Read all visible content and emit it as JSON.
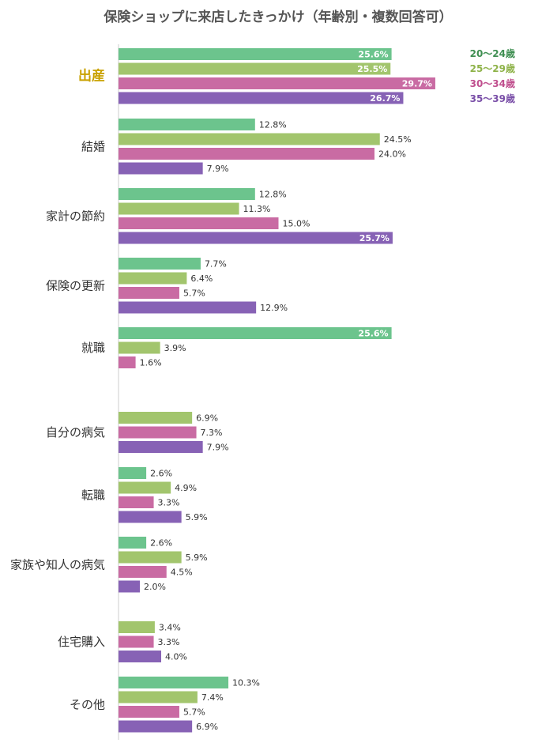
{
  "chart_data": {
    "type": "bar",
    "orientation": "horizontal",
    "title": "保険ショップに来店したきっかけ（年齢別・複数回答可）",
    "xlim": [
      0,
      30
    ],
    "grid": false,
    "legend_position": "top-right",
    "highlight_category": "出産",
    "categories": [
      "出産",
      "結婚",
      "家計の節約",
      "保険の更新",
      "就職",
      "自分の病気",
      "転職",
      "家族や知人の病気",
      "住宅購入",
      "その他"
    ],
    "series": [
      {
        "name": "20〜24歳",
        "color": "#6cc48d",
        "values": [
          25.6,
          12.8,
          12.8,
          7.7,
          25.6,
          null,
          2.6,
          2.6,
          null,
          10.3
        ]
      },
      {
        "name": "25〜29歳",
        "color": "#a2c56d",
        "values": [
          25.5,
          24.5,
          11.3,
          6.4,
          3.9,
          6.9,
          4.9,
          5.9,
          3.4,
          7.4
        ]
      },
      {
        "name": "30〜34歳",
        "color": "#c96ba3",
        "values": [
          29.7,
          24.0,
          15.0,
          5.7,
          1.6,
          7.3,
          3.3,
          4.5,
          3.3,
          5.7
        ]
      },
      {
        "name": "35〜39歳",
        "color": "#8762b5",
        "values": [
          26.7,
          7.9,
          25.7,
          12.9,
          null,
          7.9,
          5.9,
          2.0,
          4.0,
          6.9
        ]
      }
    ],
    "legend_colors": [
      "#3f8f52",
      "#8fb34a",
      "#c04f8e",
      "#7a4fa8"
    ],
    "value_suffix": "%"
  }
}
